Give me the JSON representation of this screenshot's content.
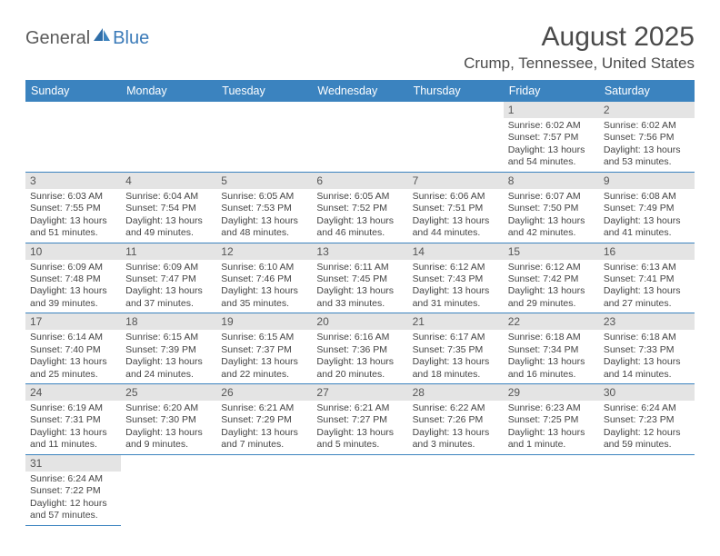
{
  "logo": {
    "text1": "General",
    "text2": "Blue"
  },
  "title": "August 2025",
  "subtitle": "Crump, Tennessee, United States",
  "header_bg": "#3b83bf",
  "header_fg": "#ffffff",
  "daynum_bg": "#e4e4e4",
  "border_color": "#3b83bf",
  "text_color": "#444444",
  "columns": [
    "Sunday",
    "Monday",
    "Tuesday",
    "Wednesday",
    "Thursday",
    "Friday",
    "Saturday"
  ],
  "weeks": [
    [
      null,
      null,
      null,
      null,
      null,
      {
        "n": "1",
        "sr": "6:02 AM",
        "ss": "7:57 PM",
        "dl": "13 hours and 54 minutes."
      },
      {
        "n": "2",
        "sr": "6:02 AM",
        "ss": "7:56 PM",
        "dl": "13 hours and 53 minutes."
      }
    ],
    [
      {
        "n": "3",
        "sr": "6:03 AM",
        "ss": "7:55 PM",
        "dl": "13 hours and 51 minutes."
      },
      {
        "n": "4",
        "sr": "6:04 AM",
        "ss": "7:54 PM",
        "dl": "13 hours and 49 minutes."
      },
      {
        "n": "5",
        "sr": "6:05 AM",
        "ss": "7:53 PM",
        "dl": "13 hours and 48 minutes."
      },
      {
        "n": "6",
        "sr": "6:05 AM",
        "ss": "7:52 PM",
        "dl": "13 hours and 46 minutes."
      },
      {
        "n": "7",
        "sr": "6:06 AM",
        "ss": "7:51 PM",
        "dl": "13 hours and 44 minutes."
      },
      {
        "n": "8",
        "sr": "6:07 AM",
        "ss": "7:50 PM",
        "dl": "13 hours and 42 minutes."
      },
      {
        "n": "9",
        "sr": "6:08 AM",
        "ss": "7:49 PM",
        "dl": "13 hours and 41 minutes."
      }
    ],
    [
      {
        "n": "10",
        "sr": "6:09 AM",
        "ss": "7:48 PM",
        "dl": "13 hours and 39 minutes."
      },
      {
        "n": "11",
        "sr": "6:09 AM",
        "ss": "7:47 PM",
        "dl": "13 hours and 37 minutes."
      },
      {
        "n": "12",
        "sr": "6:10 AM",
        "ss": "7:46 PM",
        "dl": "13 hours and 35 minutes."
      },
      {
        "n": "13",
        "sr": "6:11 AM",
        "ss": "7:45 PM",
        "dl": "13 hours and 33 minutes."
      },
      {
        "n": "14",
        "sr": "6:12 AM",
        "ss": "7:43 PM",
        "dl": "13 hours and 31 minutes."
      },
      {
        "n": "15",
        "sr": "6:12 AM",
        "ss": "7:42 PM",
        "dl": "13 hours and 29 minutes."
      },
      {
        "n": "16",
        "sr": "6:13 AM",
        "ss": "7:41 PM",
        "dl": "13 hours and 27 minutes."
      }
    ],
    [
      {
        "n": "17",
        "sr": "6:14 AM",
        "ss": "7:40 PM",
        "dl": "13 hours and 25 minutes."
      },
      {
        "n": "18",
        "sr": "6:15 AM",
        "ss": "7:39 PM",
        "dl": "13 hours and 24 minutes."
      },
      {
        "n": "19",
        "sr": "6:15 AM",
        "ss": "7:37 PM",
        "dl": "13 hours and 22 minutes."
      },
      {
        "n": "20",
        "sr": "6:16 AM",
        "ss": "7:36 PM",
        "dl": "13 hours and 20 minutes."
      },
      {
        "n": "21",
        "sr": "6:17 AM",
        "ss": "7:35 PM",
        "dl": "13 hours and 18 minutes."
      },
      {
        "n": "22",
        "sr": "6:18 AM",
        "ss": "7:34 PM",
        "dl": "13 hours and 16 minutes."
      },
      {
        "n": "23",
        "sr": "6:18 AM",
        "ss": "7:33 PM",
        "dl": "13 hours and 14 minutes."
      }
    ],
    [
      {
        "n": "24",
        "sr": "6:19 AM",
        "ss": "7:31 PM",
        "dl": "13 hours and 11 minutes."
      },
      {
        "n": "25",
        "sr": "6:20 AM",
        "ss": "7:30 PM",
        "dl": "13 hours and 9 minutes."
      },
      {
        "n": "26",
        "sr": "6:21 AM",
        "ss": "7:29 PM",
        "dl": "13 hours and 7 minutes."
      },
      {
        "n": "27",
        "sr": "6:21 AM",
        "ss": "7:27 PM",
        "dl": "13 hours and 5 minutes."
      },
      {
        "n": "28",
        "sr": "6:22 AM",
        "ss": "7:26 PM",
        "dl": "13 hours and 3 minutes."
      },
      {
        "n": "29",
        "sr": "6:23 AM",
        "ss": "7:25 PM",
        "dl": "13 hours and 1 minute."
      },
      {
        "n": "30",
        "sr": "6:24 AM",
        "ss": "7:23 PM",
        "dl": "12 hours and 59 minutes."
      }
    ],
    [
      {
        "n": "31",
        "sr": "6:24 AM",
        "ss": "7:22 PM",
        "dl": "12 hours and 57 minutes."
      },
      null,
      null,
      null,
      null,
      null,
      null
    ]
  ],
  "labels": {
    "sunrise": "Sunrise:",
    "sunset": "Sunset:",
    "daylight": "Daylight:"
  }
}
